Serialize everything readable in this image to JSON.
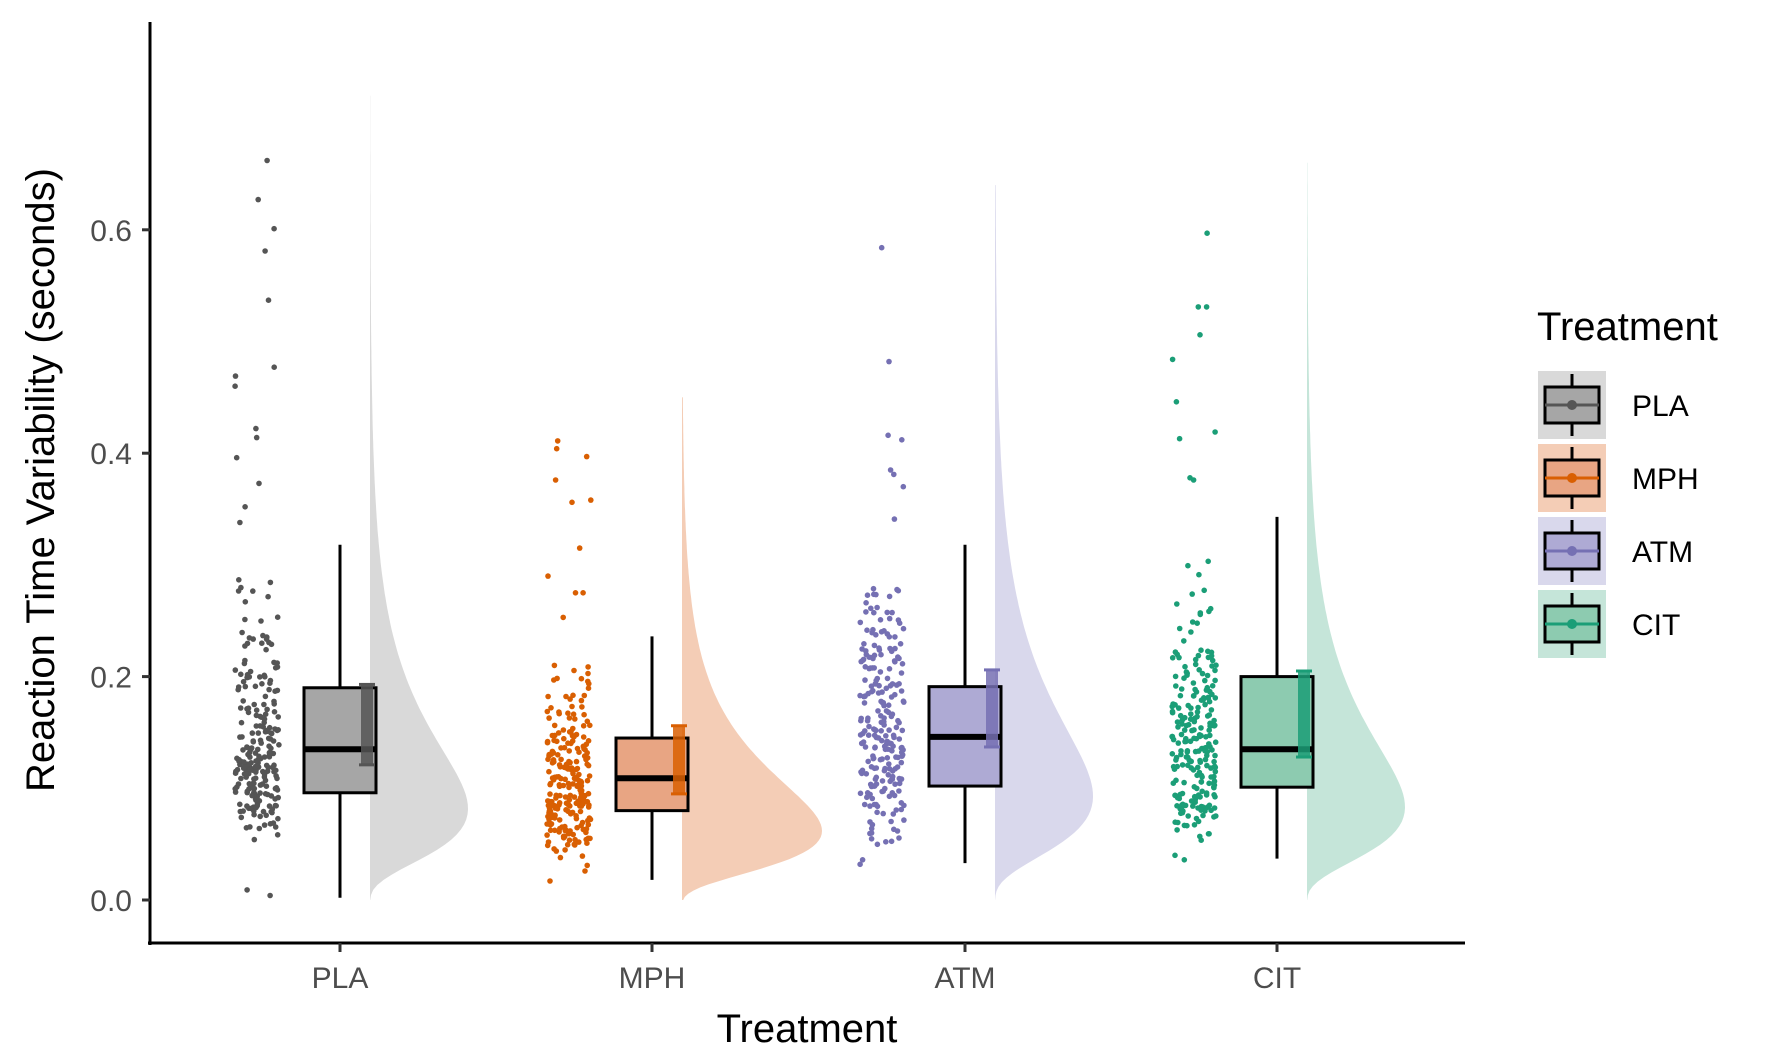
{
  "chart_data": {
    "type": "raincloud",
    "xlabel": "Treatment",
    "ylabel": "Reaction Time Variability (seconds)",
    "ylim": [
      -0.035,
      0.78
    ],
    "yticks": [
      "0.0",
      "0.2",
      "0.4",
      "0.6"
    ],
    "ytick_values": [
      0.0,
      0.2,
      0.4,
      0.6
    ],
    "categories": [
      "PLA",
      "MPH",
      "ATM",
      "CIT"
    ],
    "grid": false,
    "legend": {
      "title": "Treatment",
      "position": "right",
      "items": [
        "PLA",
        "MPH",
        "ATM",
        "CIT"
      ]
    },
    "series": [
      {
        "name": "PLA",
        "color": "#555555",
        "fill": "#d9d9d9",
        "box_fill": "#a6a6a6",
        "box": {
          "min": 0.002,
          "q1": 0.096,
          "median": 0.135,
          "q3": 0.19,
          "max": 0.318
        },
        "mean_ci": [
          0.121,
          0.193
        ],
        "density_max": 0.72,
        "density_peak": 0.115,
        "outliers": [
          0.662,
          0.627,
          0.601,
          0.581,
          0.537,
          0.477,
          0.469,
          0.46,
          0.422,
          0.414,
          0.396,
          0.373,
          0.352,
          0.338,
          0.004,
          0.009
        ]
      },
      {
        "name": "MPH",
        "color": "#d95f02",
        "fill": "#f4cdb6",
        "box_fill": "#e8a583",
        "box": {
          "min": 0.018,
          "q1": 0.08,
          "median": 0.109,
          "q3": 0.145,
          "max": 0.236
        },
        "mean_ci": [
          0.095,
          0.156
        ],
        "density_max": 0.45,
        "density_peak": 0.088,
        "outliers": [
          0.411,
          0.404,
          0.397,
          0.376,
          0.358,
          0.356,
          0.315,
          0.29,
          0.275,
          0.275,
          0.253,
          0.026,
          0.017
        ]
      },
      {
        "name": "ATM",
        "color": "#7570b3",
        "fill": "#d9d8ec",
        "box_fill": "#aeaad4",
        "box": {
          "min": 0.033,
          "q1": 0.102,
          "median": 0.146,
          "q3": 0.191,
          "max": 0.318
        },
        "mean_ci": [
          0.137,
          0.206
        ],
        "density_max": 0.64,
        "density_peak": 0.13,
        "outliers": [
          0.584,
          0.482,
          0.416,
          0.412,
          0.385,
          0.381,
          0.37,
          0.341,
          0.036,
          0.032
        ]
      },
      {
        "name": "CIT",
        "color": "#1b9e77",
        "fill": "#c5e5d9",
        "box_fill": "#8dcbb0",
        "box": {
          "min": 0.037,
          "q1": 0.101,
          "median": 0.135,
          "q3": 0.2,
          "max": 0.343
        },
        "mean_ci": [
          0.128,
          0.205
        ],
        "density_max": 0.66,
        "density_peak": 0.117,
        "outliers": [
          0.597,
          0.531,
          0.531,
          0.506,
          0.484,
          0.446,
          0.419,
          0.413,
          0.378,
          0.376,
          0.036,
          0.04
        ]
      }
    ]
  }
}
